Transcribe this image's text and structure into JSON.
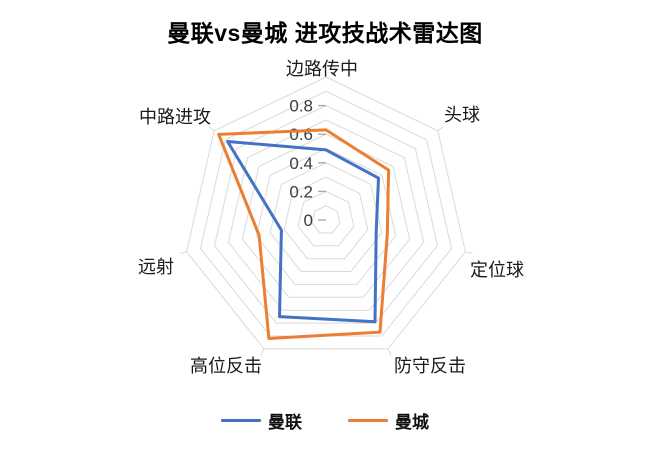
{
  "title": "曼联vs曼城 进攻技战术雷达图",
  "chart_data": {
    "type": "radar",
    "categories": [
      "边路传中",
      "头球",
      "定位球",
      "防守反击",
      "高位反击",
      "远射",
      "中路进攻"
    ],
    "series": [
      {
        "name": "曼联",
        "color": "#4472C4",
        "values": [
          0.49,
          0.47,
          0.36,
          0.79,
          0.75,
          0.32,
          0.88
        ]
      },
      {
        "name": "曼城",
        "color": "#ED7D31",
        "values": [
          0.63,
          0.56,
          0.44,
          0.87,
          0.92,
          0.48,
          0.96
        ]
      }
    ],
    "radial_ticks": [
      {
        "label": "0",
        "value": 0.0
      },
      {
        "label": "0.2",
        "value": 0.2
      },
      {
        "label": "0.4",
        "value": 0.4
      },
      {
        "label": "0.6",
        "value": 0.6
      },
      {
        "label": "0.8",
        "value": 0.8
      }
    ],
    "radial_max": 1.0,
    "grid_interval": 0.1,
    "grid_on": true,
    "grid_color": "#D9D9D9",
    "tick_color": "#A6A6A6",
    "tick_label_color": "#3b3b3b",
    "category_label_color": "#1a1a1a",
    "legend_position": "bottom"
  },
  "legend": {
    "items": [
      {
        "label": "曼联",
        "color": "#4472C4"
      },
      {
        "label": "曼城",
        "color": "#ED7D31"
      }
    ]
  }
}
